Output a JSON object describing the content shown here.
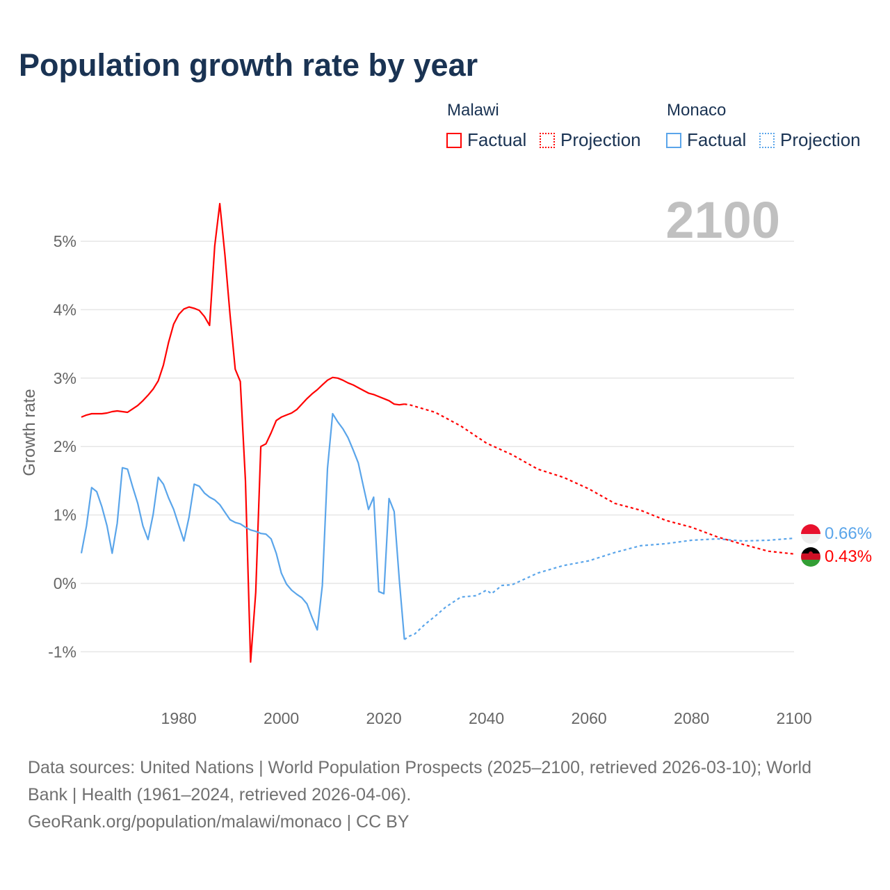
{
  "title": "Population growth rate by year",
  "legend": {
    "groups": [
      {
        "name": "Malawi",
        "factual": "Factual",
        "projection": "Projection",
        "color": "#ff0000"
      },
      {
        "name": "Monaco",
        "factual": "Factual",
        "projection": "Projection",
        "color": "#5aa5ea"
      }
    ]
  },
  "year_display": "2100",
  "end_labels": {
    "monaco": "0.66%",
    "malawi": "0.43%"
  },
  "footer": {
    "line1": "Data sources: United Nations | World Population Prospects (2025–2100, retrieved 2026-03-10); World",
    "line2": "Bank | Health (1961–2024, retrieved 2026-04-06).",
    "line3": "GeoRank.org/population/malawi/monaco | CC BY"
  },
  "chart_data": {
    "type": "line",
    "title": "Population growth rate by year",
    "xlabel": "",
    "ylabel": "Growth rate",
    "xlim": [
      1961,
      2100
    ],
    "ylim": [
      -1.5,
      5.8
    ],
    "x_ticks": [
      "1980",
      "2000",
      "2020",
      "2040",
      "2060",
      "2080",
      "2100"
    ],
    "y_ticks": [
      "-1%",
      "0%",
      "1%",
      "2%",
      "3%",
      "4%",
      "5%"
    ],
    "y_tick_values": [
      -1,
      0,
      1,
      2,
      3,
      4,
      5
    ],
    "x_tick_values": [
      1980,
      2000,
      2020,
      2040,
      2060,
      2080,
      2100
    ],
    "series": [
      {
        "name": "Malawi",
        "kind": "Factual",
        "color": "#ff0000",
        "start": 1961,
        "values": [
          2.43,
          2.46,
          2.48,
          2.48,
          2.48,
          2.49,
          2.51,
          2.52,
          2.51,
          2.5,
          2.55,
          2.6,
          2.67,
          2.75,
          2.84,
          2.96,
          3.19,
          3.52,
          3.79,
          3.93,
          4.01,
          4.04,
          4.02,
          3.99,
          3.9,
          3.77,
          4.93,
          5.55,
          4.8,
          3.92,
          3.13,
          2.95,
          1.5,
          -1.15,
          -0.13,
          2.0,
          2.04,
          2.2,
          2.38,
          2.43,
          2.46,
          2.49,
          2.54,
          2.62,
          2.7,
          2.77,
          2.83,
          2.9,
          2.97,
          3.01,
          3.0,
          2.97,
          2.93,
          2.9,
          2.86,
          2.82,
          2.78,
          2.76,
          2.73,
          2.7,
          2.67,
          2.62,
          2.61,
          2.62
        ]
      },
      {
        "name": "Malawi",
        "kind": "Projection",
        "color": "#ff0000",
        "x": [
          2024,
          2025,
          2030,
          2035,
          2040,
          2045,
          2050,
          2055,
          2060,
          2065,
          2070,
          2075,
          2080,
          2085,
          2090,
          2095,
          2100
        ],
        "values": [
          2.62,
          2.61,
          2.5,
          2.3,
          2.05,
          1.88,
          1.67,
          1.55,
          1.38,
          1.17,
          1.07,
          0.92,
          0.82,
          0.68,
          0.57,
          0.47,
          0.43
        ]
      },
      {
        "name": "Monaco",
        "kind": "Factual",
        "color": "#5aa5ea",
        "start": 1961,
        "values": [
          0.44,
          0.84,
          1.4,
          1.34,
          1.12,
          0.84,
          0.44,
          0.88,
          1.69,
          1.67,
          1.41,
          1.17,
          0.84,
          0.64,
          1.01,
          1.55,
          1.45,
          1.25,
          1.08,
          0.85,
          0.62,
          0.97,
          1.45,
          1.42,
          1.32,
          1.26,
          1.22,
          1.15,
          1.04,
          0.93,
          0.89,
          0.87,
          0.82,
          0.78,
          0.76,
          0.73,
          0.72,
          0.65,
          0.44,
          0.15,
          -0.01,
          -0.1,
          -0.16,
          -0.21,
          -0.3,
          -0.5,
          -0.68,
          -0.03,
          1.68,
          2.48,
          2.36,
          2.26,
          2.13,
          1.95,
          1.76,
          1.42,
          1.08,
          1.26,
          -0.12,
          -0.15,
          1.24,
          1.05,
          0.05,
          -0.82
        ]
      },
      {
        "name": "Monaco",
        "kind": "Projection",
        "color": "#5aa5ea",
        "x": [
          2024,
          2025,
          2026,
          2028,
          2030,
          2032,
          2035,
          2038,
          2040,
          2041,
          2043,
          2045,
          2050,
          2055,
          2060,
          2065,
          2070,
          2075,
          2080,
          2085,
          2090,
          2095,
          2100
        ],
        "values": [
          -0.82,
          -0.77,
          -0.74,
          -0.6,
          -0.48,
          -0.35,
          -0.2,
          -0.18,
          -0.1,
          -0.15,
          -0.03,
          -0.02,
          0.15,
          0.26,
          0.33,
          0.45,
          0.55,
          0.58,
          0.63,
          0.65,
          0.62,
          0.63,
          0.66
        ]
      }
    ]
  }
}
